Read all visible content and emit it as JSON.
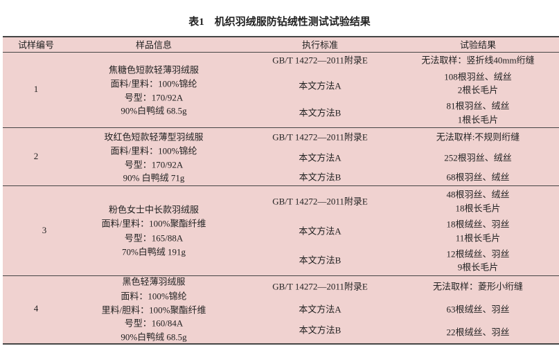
{
  "title": "表1　机织羽绒服防钻绒性测试试验结果",
  "headers": [
    "试样编号",
    "样品信息",
    "执行标准",
    "试验结果"
  ],
  "rows": [
    {
      "id": "1",
      "info": [
        "焦糖色短款轻薄羽绒服",
        "面料/里料：100%锦纶",
        "号型：170/92A",
        "90%白鸭绒 68.5g"
      ],
      "standards": [
        "GB/T 14272—2011附录E",
        "本文方法A",
        "本文方法B"
      ],
      "results": [
        "无法取样：竖折线40mm绗缝",
        "108根羽丝、绒丝",
        "2根长毛片",
        "81根羽丝、绒丝",
        "1根长毛片"
      ]
    },
    {
      "id": "2",
      "info": [
        "玫红色短款轻薄型羽绒服",
        "面料/里料：100%锦纶",
        "号型：170/92A",
        "90% 白鸭绒 71g"
      ],
      "standards": [
        "GB/T 14272—2011附录E",
        "本文方法A",
        "本文方法B"
      ],
      "results": [
        "无法取样:不规则绗缝",
        "252根羽丝、绒丝",
        "68根羽丝、绒丝"
      ]
    },
    {
      "id": "3",
      "info": [
        "粉色女士中长款羽绒服",
        "面料/里料：100%聚酯纤维",
        "号型：165/88A",
        "70%白鸭绒 191g"
      ],
      "standards": [
        "GB/T 14272—2011附录E",
        "本文方法A",
        "本文方法B"
      ],
      "results": [
        "48根羽丝、绒丝",
        "18根长毛片",
        "18根绒丝、羽丝",
        "11根长毛片",
        "12根绒丝、羽丝",
        "9根长毛片"
      ]
    },
    {
      "id": "4",
      "info": [
        "黑色轻薄羽绒服",
        "面料：100%锦纶",
        "里料/胆料：100%聚酯纤维",
        "号型：160/84A",
        "90%白鸭绒 68.5g"
      ],
      "standards": [
        "GB/T 14272—2011附录E",
        "本文方法A",
        "本文方法B"
      ],
      "results": [
        "无法取样：菱形小绗缝",
        "63根绒丝、羽丝",
        "22根绒丝、羽丝"
      ]
    }
  ],
  "colors": {
    "background": "#f0d2d0",
    "rule": "#444444"
  }
}
